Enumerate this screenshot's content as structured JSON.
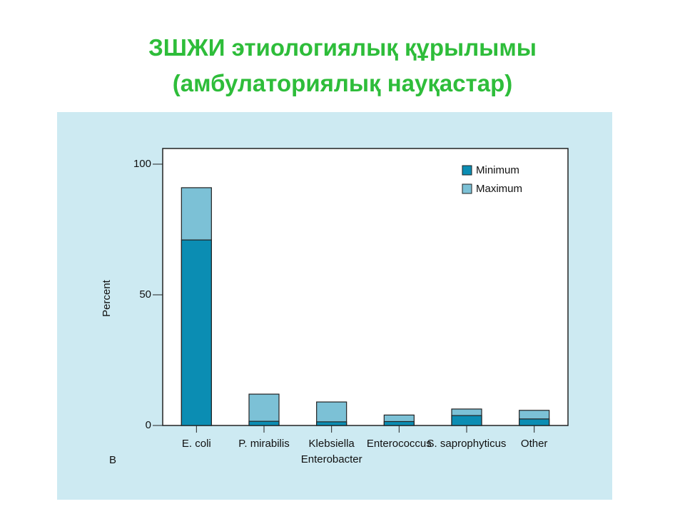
{
  "title": "ЗШЖИ этиологиялық құрылымы",
  "subtitle": "(амбулаториялық науқастар)",
  "chart_data": {
    "type": "bar",
    "panel_label": "B",
    "ylabel": "Percent",
    "categories": [
      "E. coli",
      "P. mirabilis",
      "Klebsiella\nEnterobacter",
      "Enterococcus",
      "S. saprophyticus",
      "Other"
    ],
    "series": [
      {
        "name": "Minimum",
        "color": "#0b8db3",
        "values": [
          71,
          1.6,
          1.4,
          1.5,
          3.8,
          2.5
        ]
      },
      {
        "name": "Maximum",
        "color": "#7cc1d6",
        "values": [
          91,
          12,
          9,
          4,
          6.3,
          5.8
        ]
      }
    ],
    "ylim": [
      0,
      106
    ],
    "yticks": [
      0,
      50,
      100
    ],
    "legend": "upper right"
  }
}
